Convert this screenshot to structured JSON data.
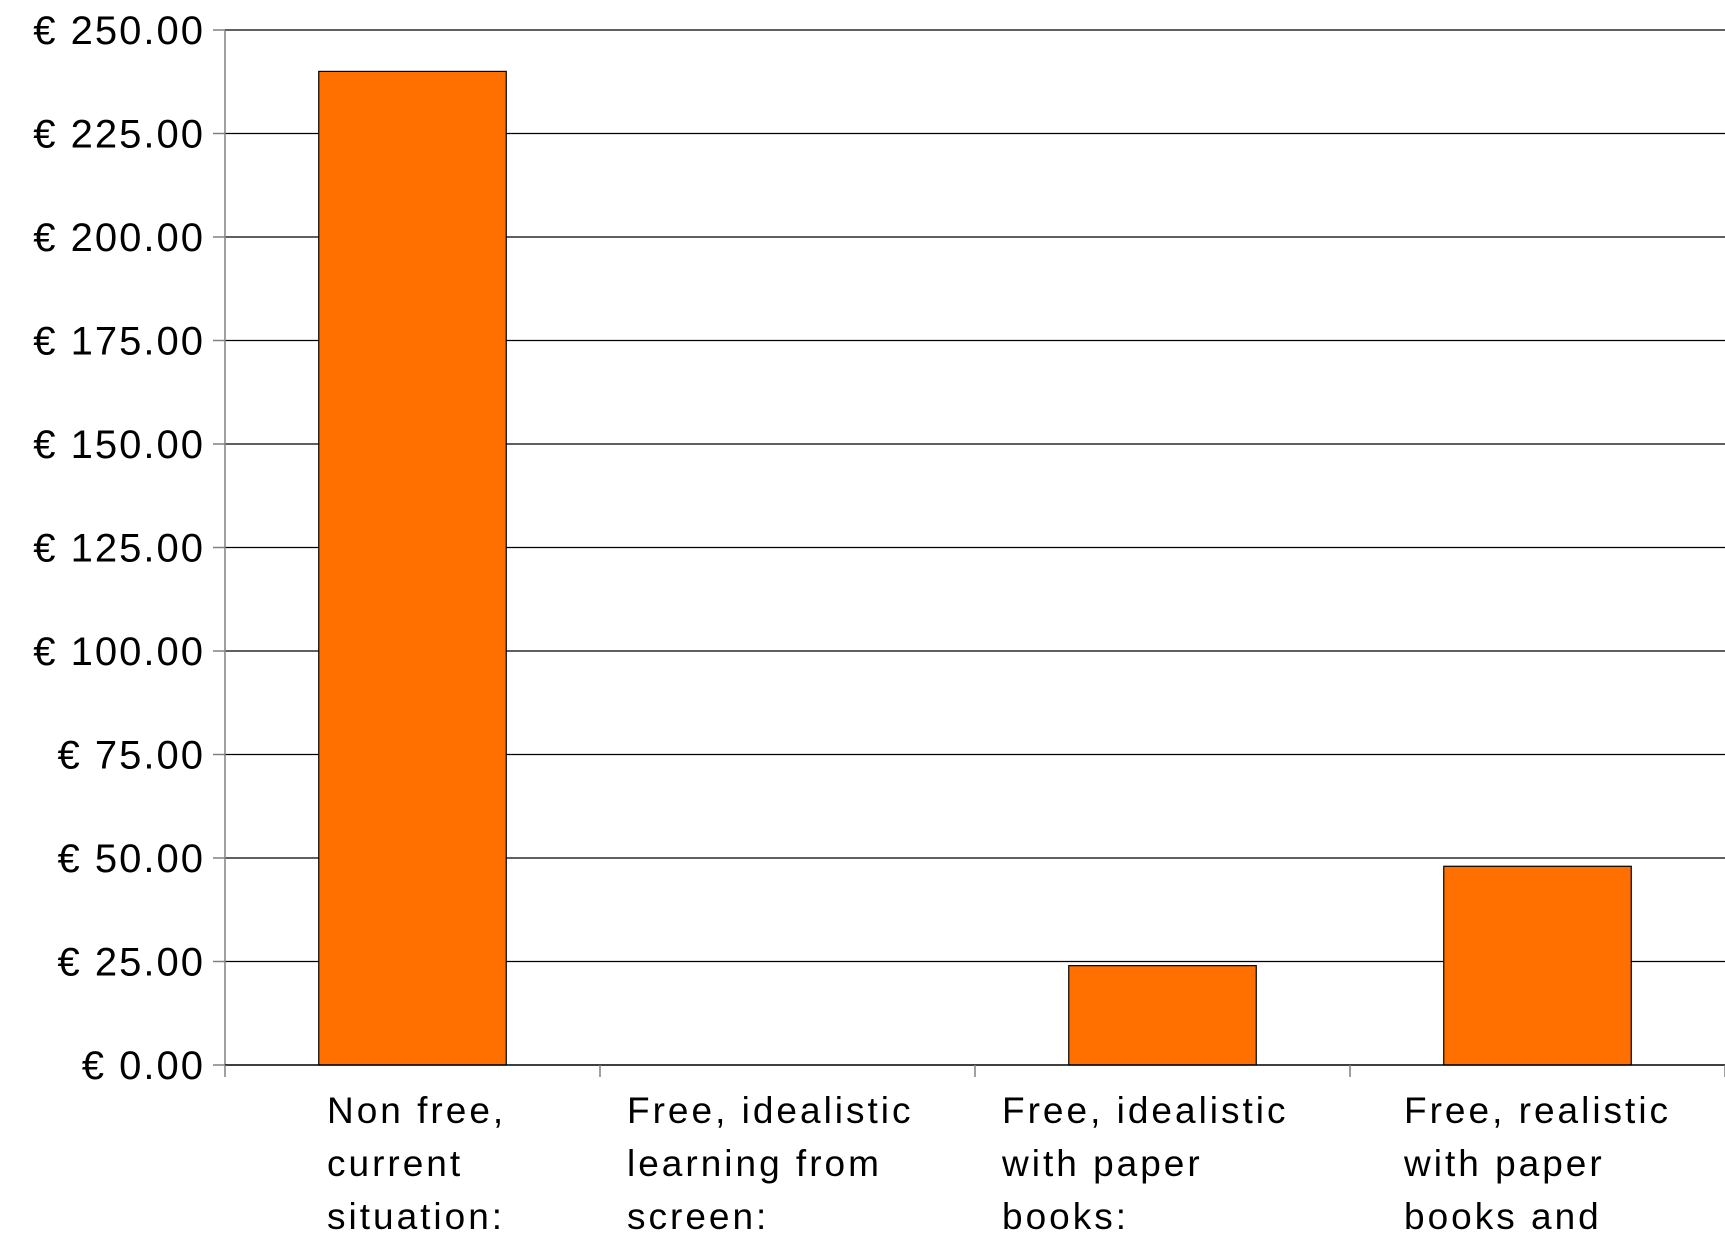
{
  "chart_data": {
    "type": "bar",
    "categories": [
      [
        "Non free,",
        "current",
        "situation:"
      ],
      [
        "Free, idealistic",
        "learning from",
        "screen:"
      ],
      [
        "Free, idealistic",
        "with paper",
        "books:"
      ],
      [
        "Free, realistic",
        "with paper",
        "books and"
      ]
    ],
    "values": [
      240,
      0,
      24,
      48
    ],
    "ylim": [
      0,
      250
    ],
    "yticks": [
      0,
      25,
      50,
      75,
      100,
      125,
      150,
      175,
      200,
      225,
      250
    ],
    "ytick_labels": [
      "€ 0.00",
      "€ 25.00",
      "€ 50.00",
      "€ 75.00",
      "€ 100.00",
      "€ 125.00",
      "€ 150.00",
      "€ 175.00",
      "€ 200.00",
      "€ 225.00",
      "€ 250.00"
    ],
    "grid": true,
    "legend": false,
    "colors": {
      "bar": "#ff7000",
      "bar_edge": "#000000",
      "grid": "#000000",
      "axis": "#808080"
    }
  }
}
